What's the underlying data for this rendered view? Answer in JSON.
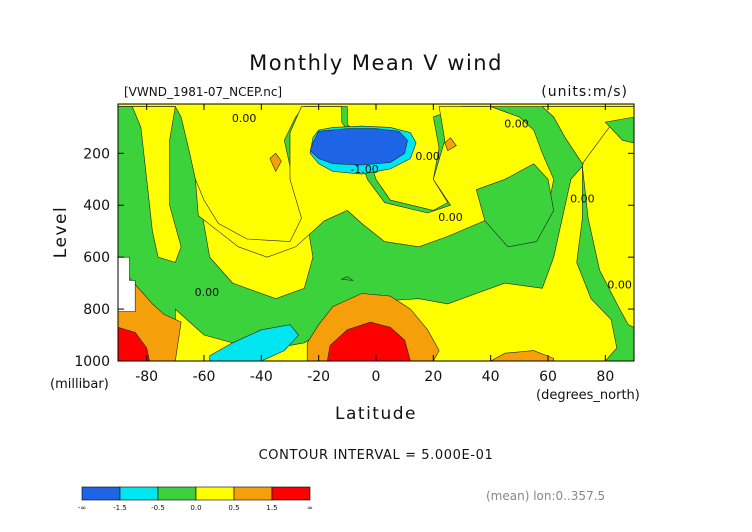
{
  "chart_data": {
    "type": "heatmap",
    "title": "Monthly Mean V wind",
    "file_label": "[VWND_1981-07_NCEP.nc]",
    "units_label": "(units:m/s)",
    "xlabel": "Latitude",
    "x_units": "(degrees_north)",
    "ylabel": "Level",
    "y_units": "(millibar)",
    "xlim": [
      -90,
      90
    ],
    "ylim": [
      1000,
      10
    ],
    "x_ticks": [
      -80,
      -60,
      -40,
      -20,
      0,
      20,
      40,
      60,
      80
    ],
    "x_tick_labels": [
      "-80",
      "-60",
      "-40",
      "-20",
      "0",
      "20",
      "40",
      "60",
      "80"
    ],
    "y_ticks": [
      200,
      400,
      600,
      800,
      1000
    ],
    "y_tick_labels": [
      "200",
      "400",
      "600",
      "800",
      "1000"
    ],
    "contour_interval_text": "CONTOUR INTERVAL = 5.000E-01",
    "footer_text": "(mean) lon:0..357.5",
    "contour_labels": [
      {
        "text": "0.00",
        "x": -46,
        "y": 80
      },
      {
        "text": "-1.00",
        "x": -4,
        "y": 275
      },
      {
        "text": "0.00",
        "x": 18,
        "y": 225
      },
      {
        "text": "0.00",
        "x": 49,
        "y": 100
      },
      {
        "text": "0.00",
        "x": 72,
        "y": 390
      },
      {
        "text": "0.00",
        "x": 26,
        "y": 460
      },
      {
        "text": "0.00",
        "x": -59,
        "y": 750
      },
      {
        "text": "0.00",
        "x": 85,
        "y": 720
      }
    ],
    "legend": {
      "bins": [
        {
          "range": "< -1.5",
          "color": "#1e64e6"
        },
        {
          "range": "-1.5 to -0.5",
          "color": "#00e6f0"
        },
        {
          "range": "-0.5 to 0.0",
          "color": "#3cd23c"
        },
        {
          "range": "0.0 to 0.5",
          "color": "#ffff00"
        },
        {
          "range": "0.5 to 1.5",
          "color": "#f5a00a"
        },
        {
          "range": "> 1.5",
          "color": "#ff0000"
        }
      ],
      "tick_labels": [
        "-∞",
        "-1.5",
        "-0.5",
        "0.0",
        "0.5",
        "1.5",
        "∞"
      ]
    },
    "regions": [
      {
        "name": "green-band-left",
        "color": "#3cd23c",
        "values": [
          [
            -90,
            20
          ],
          [
            -70,
            20
          ],
          [
            -68,
            60
          ],
          [
            -65,
            200
          ],
          [
            -62,
            350
          ],
          [
            -58,
            600
          ],
          [
            -50,
            700
          ],
          [
            -35,
            760
          ],
          [
            -25,
            720
          ],
          [
            -22,
            600
          ],
          [
            -25,
            400
          ],
          [
            -30,
            250
          ],
          [
            -32,
            150
          ],
          [
            -28,
            60
          ],
          [
            -25,
            20
          ],
          [
            -10,
            20
          ],
          [
            -10,
            90
          ],
          [
            -5,
            130
          ],
          [
            0,
            300
          ],
          [
            5,
            380
          ],
          [
            20,
            420
          ],
          [
            25,
            390
          ],
          [
            20,
            300
          ],
          [
            22,
            180
          ],
          [
            20,
            60
          ],
          [
            30,
            20
          ],
          [
            90,
            20
          ],
          [
            90,
            100
          ],
          [
            80,
            80
          ],
          [
            75,
            120
          ],
          [
            72,
            250
          ],
          [
            74,
            450
          ],
          [
            78,
            650
          ],
          [
            85,
            800
          ],
          [
            88,
            860
          ],
          [
            90,
            870
          ],
          [
            90,
            1000
          ],
          [
            -90,
            1000
          ]
        ]
      },
      {
        "name": "yellow-left-column",
        "color": "#ffff00",
        "values": [
          [
            -90,
            20
          ],
          [
            -85,
            20
          ],
          [
            -82,
            100
          ],
          [
            -80,
            300
          ],
          [
            -78,
            500
          ],
          [
            -76,
            600
          ],
          [
            -70,
            620
          ],
          [
            -68,
            560
          ],
          [
            -72,
            400
          ],
          [
            -72,
            150
          ],
          [
            -70,
            20
          ]
        ]
      },
      {
        "name": "yellow-central",
        "color": "#ffff00",
        "values": [
          [
            -62,
            440
          ],
          [
            -55,
            500
          ],
          [
            -48,
            560
          ],
          [
            -38,
            600
          ],
          [
            -28,
            560
          ],
          [
            -18,
            460
          ],
          [
            -10,
            420
          ],
          [
            -5,
            470
          ],
          [
            3,
            540
          ],
          [
            15,
            560
          ],
          [
            25,
            520
          ],
          [
            40,
            450
          ],
          [
            50,
            420
          ],
          [
            60,
            410
          ],
          [
            62,
            300
          ],
          [
            58,
            200
          ],
          [
            55,
            110
          ],
          [
            50,
            60
          ],
          [
            40,
            20
          ],
          [
            22,
            20
          ],
          [
            24,
            150
          ],
          [
            20,
            300
          ],
          [
            26,
            400
          ],
          [
            18,
            430
          ],
          [
            3,
            390
          ],
          [
            -3,
            300
          ],
          [
            -8,
            140
          ],
          [
            -12,
            80
          ],
          [
            -12,
            20
          ],
          [
            -26,
            20
          ],
          [
            -30,
            120
          ],
          [
            -30,
            300
          ],
          [
            -26,
            450
          ],
          [
            -30,
            540
          ],
          [
            -45,
            530
          ],
          [
            -55,
            470
          ],
          [
            -60,
            380
          ],
          [
            -63,
            300
          ]
        ]
      },
      {
        "name": "yellow-lower",
        "color": "#ffff00",
        "values": [
          [
            -70,
            800
          ],
          [
            -60,
            900
          ],
          [
            -40,
            960
          ],
          [
            -25,
            930
          ],
          [
            -15,
            860
          ],
          [
            0,
            770
          ],
          [
            15,
            760
          ],
          [
            25,
            780
          ],
          [
            35,
            740
          ],
          [
            45,
            700
          ],
          [
            58,
            720
          ],
          [
            62,
            600
          ],
          [
            65,
            450
          ],
          [
            68,
            300
          ],
          [
            72,
            250
          ],
          [
            72,
            450
          ],
          [
            70,
            620
          ],
          [
            75,
            760
          ],
          [
            82,
            840
          ],
          [
            84,
            950
          ],
          [
            80,
            1000
          ],
          [
            -70,
            1000
          ]
        ]
      },
      {
        "name": "yellow-top-right",
        "color": "#ffff00",
        "values": [
          [
            58,
            20
          ],
          [
            90,
            20
          ],
          [
            90,
            80
          ],
          [
            82,
            90
          ],
          [
            78,
            150
          ],
          [
            72,
            240
          ],
          [
            66,
            140
          ],
          [
            62,
            60
          ]
        ]
      },
      {
        "name": "green-top-right",
        "color": "#3cd23c",
        "values": [
          [
            80,
            80
          ],
          [
            90,
            60
          ],
          [
            90,
            160
          ],
          [
            86,
            150
          ]
        ]
      },
      {
        "name": "green-right-mid",
        "color": "#3cd23c",
        "values": [
          [
            35,
            340
          ],
          [
            45,
            300
          ],
          [
            55,
            240
          ],
          [
            60,
            300
          ],
          [
            62,
            420
          ],
          [
            56,
            540
          ],
          [
            46,
            560
          ],
          [
            38,
            460
          ]
        ]
      },
      {
        "name": "orange-left",
        "color": "#f5a00a",
        "values": [
          [
            -90,
            700
          ],
          [
            -86,
            680
          ],
          [
            -78,
            780
          ],
          [
            -74,
            820
          ],
          [
            -68,
            850
          ],
          [
            -70,
            1000
          ],
          [
            -90,
            1000
          ]
        ]
      },
      {
        "name": "red-left",
        "color": "#ff0000",
        "values": [
          [
            -90,
            870
          ],
          [
            -84,
            890
          ],
          [
            -80,
            950
          ],
          [
            -79,
            1000
          ],
          [
            -90,
            1000
          ]
        ]
      },
      {
        "name": "cyan-lower-left",
        "color": "#00e6f0",
        "values": [
          [
            -58,
            980
          ],
          [
            -50,
            930
          ],
          [
            -40,
            880
          ],
          [
            -30,
            860
          ],
          [
            -27,
            900
          ],
          [
            -32,
            960
          ],
          [
            -40,
            1000
          ],
          [
            -58,
            1000
          ]
        ]
      },
      {
        "name": "orange-lower-central",
        "color": "#f5a00a",
        "values": [
          [
            -24,
            1000
          ],
          [
            -24,
            930
          ],
          [
            -20,
            860
          ],
          [
            -15,
            790
          ],
          [
            -5,
            740
          ],
          [
            5,
            750
          ],
          [
            12,
            800
          ],
          [
            18,
            880
          ],
          [
            22,
            960
          ],
          [
            20,
            1000
          ]
        ]
      },
      {
        "name": "red-lower-central",
        "color": "#ff0000",
        "values": [
          [
            -17,
            1000
          ],
          [
            -16,
            940
          ],
          [
            -10,
            880
          ],
          [
            -2,
            850
          ],
          [
            5,
            870
          ],
          [
            10,
            920
          ],
          [
            12,
            1000
          ]
        ]
      },
      {
        "name": "orange-lower-right",
        "color": "#f5a00a",
        "values": [
          [
            40,
            1000
          ],
          [
            45,
            970
          ],
          [
            55,
            960
          ],
          [
            62,
            990
          ],
          [
            62,
            1000
          ]
        ]
      },
      {
        "name": "orange-small-left",
        "color": "#f5a00a",
        "values": [
          [
            -37,
            220
          ],
          [
            -35,
            200
          ],
          [
            -33,
            230
          ],
          [
            -35,
            270
          ]
        ]
      },
      {
        "name": "orange-small-right",
        "color": "#f5a00a",
        "values": [
          [
            24,
            160
          ],
          [
            26,
            140
          ],
          [
            28,
            170
          ],
          [
            25,
            190
          ]
        ]
      },
      {
        "name": "cyan-upper",
        "color": "#00e6f0",
        "values": [
          [
            -22,
            140
          ],
          [
            -20,
            110
          ],
          [
            -15,
            100
          ],
          [
            -5,
            95
          ],
          [
            5,
            100
          ],
          [
            12,
            120
          ],
          [
            14,
            160
          ],
          [
            12,
            220
          ],
          [
            5,
            260
          ],
          [
            -5,
            280
          ],
          [
            -15,
            270
          ],
          [
            -20,
            240
          ],
          [
            -23,
            200
          ]
        ]
      },
      {
        "name": "blue-upper",
        "color": "#1e64e6",
        "values": [
          [
            -22,
            160
          ],
          [
            -20,
            115
          ],
          [
            -10,
            105
          ],
          [
            0,
            105
          ],
          [
            8,
            115
          ],
          [
            11,
            150
          ],
          [
            10,
            200
          ],
          [
            5,
            235
          ],
          [
            -5,
            245
          ],
          [
            -15,
            240
          ],
          [
            -20,
            220
          ],
          [
            -23,
            190
          ]
        ]
      },
      {
        "name": "green-speck",
        "color": "#3cd23c",
        "values": [
          [
            -12,
            685
          ],
          [
            -10,
            675
          ],
          [
            -8,
            690
          ]
        ]
      },
      {
        "name": "white-mask-left",
        "color": "#ffffff",
        "values": [
          [
            -90,
            600
          ],
          [
            -86,
            600
          ],
          [
            -86,
            690
          ],
          [
            -84,
            690
          ],
          [
            -84,
            810
          ],
          [
            -90,
            810
          ]
        ]
      }
    ]
  }
}
